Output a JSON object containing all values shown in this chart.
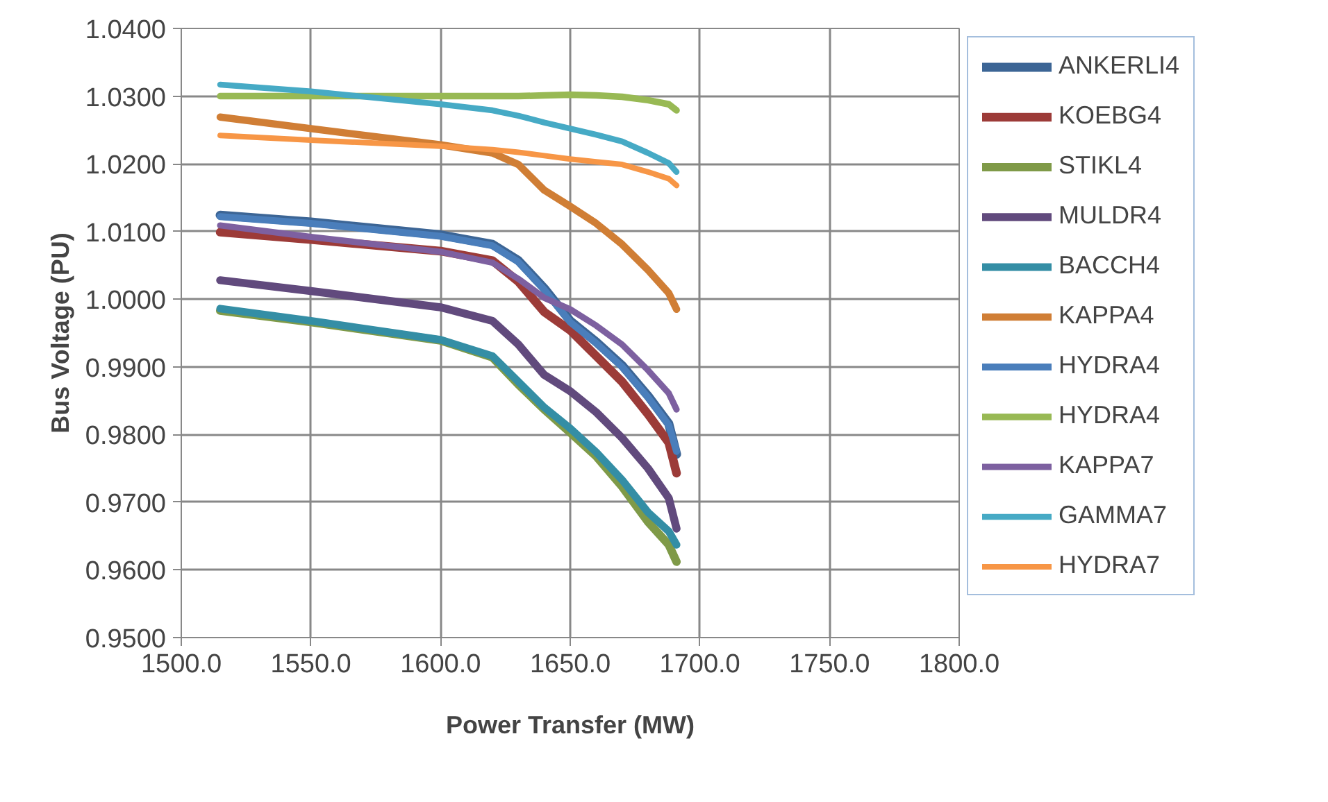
{
  "chart_data": {
    "type": "line",
    "xlabel": "Power Transfer (MW)",
    "ylabel": "Bus Voltage (PU)",
    "x": [
      1515,
      1550,
      1600,
      1620,
      1630,
      1640,
      1650,
      1660,
      1670,
      1680,
      1688,
      1691
    ],
    "series": [
      {
        "name": "ANKERLI4",
        "color": "#3c6595",
        "values": [
          1.0124,
          1.0114,
          1.0095,
          1.0081,
          1.0057,
          1.0016,
          0.9968,
          0.9937,
          0.9902,
          0.9857,
          0.9816,
          0.9771
        ]
      },
      {
        "name": "KOEBG4",
        "color": "#9c3b38",
        "values": [
          1.0099,
          1.0088,
          1.0071,
          1.0057,
          1.0026,
          0.9981,
          0.9954,
          0.9916,
          0.9878,
          0.983,
          0.9788,
          0.9743
        ]
      },
      {
        "name": "STIKL4",
        "color": "#7f9a48",
        "values": [
          0.9983,
          0.9966,
          0.9939,
          0.9914,
          0.9874,
          0.9837,
          0.9803,
          0.9768,
          0.9723,
          0.9671,
          0.9637,
          0.9612
        ]
      },
      {
        "name": "MULDR4",
        "color": "#614a7d",
        "values": [
          1.0028,
          1.0012,
          0.9988,
          0.9968,
          0.9933,
          0.9888,
          0.9864,
          0.9833,
          0.9795,
          0.975,
          0.9706,
          0.9661
        ]
      },
      {
        "name": "BACCH4",
        "color": "#348ea5",
        "values": [
          0.9986,
          0.9968,
          0.994,
          0.9916,
          0.9878,
          0.984,
          0.9809,
          0.9774,
          0.9733,
          0.9685,
          0.9657,
          0.9637
        ]
      },
      {
        "name": "KAPPA4",
        "color": "#d07e35",
        "values": [
          1.0269,
          1.0252,
          1.0228,
          1.0216,
          1.0199,
          1.0161,
          1.0137,
          1.0112,
          1.0081,
          1.0043,
          1.0009,
          0.9985
        ]
      },
      {
        "name": "HYDRA4",
        "color": "#4a7ebb",
        "values": [
          1.0122,
          1.0112,
          1.0093,
          1.0079,
          1.0055,
          1.0014,
          0.9966,
          0.9935,
          0.99,
          0.9855,
          0.9814,
          0.9775
        ]
      },
      {
        "name": "HYDRA4",
        "color": "#98b954",
        "values": [
          1.03,
          1.03,
          1.03,
          1.03,
          1.03,
          1.0301,
          1.0302,
          1.0301,
          1.0299,
          1.0294,
          1.0288,
          1.0279
        ]
      },
      {
        "name": "KAPPA7",
        "color": "#7d60a0",
        "values": [
          1.0109,
          1.0092,
          1.007,
          1.0054,
          1.003,
          1.0002,
          0.9985,
          0.9961,
          0.9933,
          0.9895,
          0.9861,
          0.9837
        ]
      },
      {
        "name": "GAMMA7",
        "color": "#46aac5",
        "values": [
          1.0317,
          1.0307,
          1.0288,
          1.0279,
          1.0271,
          1.0261,
          1.0252,
          1.0243,
          1.0233,
          1.0216,
          1.0201,
          1.0188
        ]
      },
      {
        "name": "HYDRA7",
        "color": "#f79646",
        "values": [
          1.0242,
          1.0235,
          1.0226,
          1.0221,
          1.0217,
          1.0212,
          1.0207,
          1.0203,
          1.0199,
          1.0188,
          1.0178,
          1.0168
        ]
      }
    ],
    "xlim": [
      1500,
      1800
    ],
    "xticks": [
      {
        "value": 1500,
        "label": "1500.0"
      },
      {
        "value": 1550,
        "label": "1550.0"
      },
      {
        "value": 1600,
        "label": "1600.0"
      },
      {
        "value": 1650,
        "label": "1650.0"
      },
      {
        "value": 1700,
        "label": "1700.0"
      },
      {
        "value": 1750,
        "label": "1750.0"
      },
      {
        "value": 1800,
        "label": "1800.0"
      }
    ],
    "ylim": [
      0.95,
      1.04
    ],
    "yticks": [
      {
        "value": 0.95,
        "label": "0.9500"
      },
      {
        "value": 0.96,
        "label": "0.9600"
      },
      {
        "value": 0.97,
        "label": "0.9700"
      },
      {
        "value": 0.98,
        "label": "0.9800"
      },
      {
        "value": 0.99,
        "label": "0.9900"
      },
      {
        "value": 1.0,
        "label": "1.0000"
      },
      {
        "value": 1.01,
        "label": "1.0100"
      },
      {
        "value": 1.02,
        "label": "1.0200"
      },
      {
        "value": 1.03,
        "label": "1.0300"
      },
      {
        "value": 1.04,
        "label": "1.0400"
      }
    ],
    "grid": true,
    "legend": "right",
    "marker": "none",
    "line_style": "solid"
  }
}
